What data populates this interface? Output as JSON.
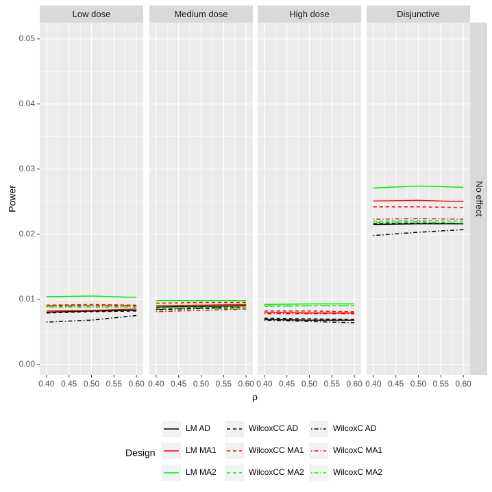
{
  "chart_data": {
    "type": "line",
    "ylabel": "Power",
    "xlabel": "ρ",
    "row_strip": "No effect",
    "xlim": [
      0.385,
      0.615
    ],
    "ylim": [
      -0.0016,
      0.0525
    ],
    "x_ticks": [
      0.4,
      0.45,
      0.5,
      0.55,
      0.6
    ],
    "x_tick_labels": [
      "0.40",
      "0.45",
      "0.50",
      "0.55",
      "0.60"
    ],
    "y_ticks": [
      0,
      0.01,
      0.02,
      0.03,
      0.04,
      0.05
    ],
    "y_tick_labels": [
      "0.00",
      "0.01",
      "0.02",
      "0.03",
      "0.04",
      "0.05"
    ],
    "x": [
      0.4,
      0.5,
      0.6
    ],
    "grid": true,
    "legend_title": "Design",
    "legend_position": "bottom",
    "styles": [
      {
        "key": "LM AD",
        "color": "#000000",
        "dash": "solid"
      },
      {
        "key": "LM MA1",
        "color": "#ff0000",
        "dash": "solid"
      },
      {
        "key": "LM MA2",
        "color": "#00ee00",
        "dash": "solid"
      },
      {
        "key": "WilcoxCC AD",
        "color": "#000000",
        "dash": "dashed"
      },
      {
        "key": "WilcoxCC MA1",
        "color": "#ff0000",
        "dash": "dashed"
      },
      {
        "key": "WilcoxCC MA2",
        "color": "#00ee00",
        "dash": "dashed"
      },
      {
        "key": "WilcoxC AD",
        "color": "#000000",
        "dash": "dotdash"
      },
      {
        "key": "WilcoxC MA1",
        "color": "#ff0000",
        "dash": "dotdash"
      },
      {
        "key": "WilcoxC MA2",
        "color": "#00ee00",
        "dash": "dotdash"
      }
    ],
    "legend_columns": [
      [
        "LM AD",
        "LM MA1",
        "LM MA2"
      ],
      [
        "WilcoxCC AD",
        "WilcoxCC MA1",
        "WilcoxCC MA2"
      ],
      [
        "WilcoxC AD",
        "WilcoxC MA1",
        "WilcoxC MA2"
      ]
    ],
    "panels": [
      {
        "title": "Low dose",
        "series": [
          {
            "name": "LM AD",
            "values": [
              0.008,
              0.0082,
              0.0083
            ]
          },
          {
            "name": "LM MA1",
            "values": [
              0.0082,
              0.0083,
              0.0085
            ]
          },
          {
            "name": "LM MA2",
            "values": [
              0.0104,
              0.0105,
              0.0103
            ]
          },
          {
            "name": "WilcoxCC AD",
            "values": [
              0.0079,
              0.0081,
              0.0082
            ]
          },
          {
            "name": "WilcoxCC MA1",
            "values": [
              0.0091,
              0.0092,
              0.0091
            ]
          },
          {
            "name": "WilcoxCC MA2",
            "values": [
              0.0089,
              0.009,
              0.0089
            ]
          },
          {
            "name": "WilcoxC AD",
            "values": [
              0.0065,
              0.0068,
              0.0075
            ]
          },
          {
            "name": "WilcoxC MA1",
            "values": [
              0.009,
              0.009,
              0.009
            ]
          },
          {
            "name": "WilcoxC MA2",
            "values": [
              0.0088,
              0.0088,
              0.0088
            ]
          }
        ]
      },
      {
        "title": "Medium dose",
        "series": [
          {
            "name": "LM AD",
            "values": [
              0.0088,
              0.0089,
              0.009
            ]
          },
          {
            "name": "LM MA1",
            "values": [
              0.009,
              0.0091,
              0.0092
            ]
          },
          {
            "name": "LM MA2",
            "values": [
              0.0098,
              0.0098,
              0.0098
            ]
          },
          {
            "name": "WilcoxCC AD",
            "values": [
              0.0085,
              0.0087,
              0.0088
            ]
          },
          {
            "name": "WilcoxCC MA1",
            "values": [
              0.0094,
              0.0095,
              0.0095
            ]
          },
          {
            "name": "WilcoxCC MA2",
            "values": [
              0.0086,
              0.0086,
              0.0085
            ]
          },
          {
            "name": "WilcoxC AD",
            "values": [
              0.0084,
              0.0086,
              0.0088
            ]
          },
          {
            "name": "WilcoxC MA1",
            "values": [
              0.0081,
              0.0083,
              0.0085
            ]
          },
          {
            "name": "WilcoxC MA2",
            "values": [
              0.0087,
              0.0088,
              0.0088
            ]
          }
        ]
      },
      {
        "title": "High dose",
        "series": [
          {
            "name": "LM AD",
            "values": [
              0.0069,
              0.0068,
              0.0068
            ]
          },
          {
            "name": "LM MA1",
            "values": [
              0.008,
              0.0079,
              0.0079
            ]
          },
          {
            "name": "LM MA2",
            "values": [
              0.0092,
              0.0093,
              0.0093
            ]
          },
          {
            "name": "WilcoxCC AD",
            "values": [
              0.0071,
              0.007,
              0.0069
            ]
          },
          {
            "name": "WilcoxCC MA1",
            "values": [
              0.0082,
              0.0082,
              0.0081
            ]
          },
          {
            "name": "WilcoxCC MA2",
            "values": [
              0.0089,
              0.009,
              0.009
            ]
          },
          {
            "name": "WilcoxC AD",
            "values": [
              0.0068,
              0.0066,
              0.0064
            ]
          },
          {
            "name": "WilcoxC MA1",
            "values": [
              0.0078,
              0.0078,
              0.0078
            ]
          },
          {
            "name": "WilcoxC MA2",
            "values": [
              0.009,
              0.009,
              0.009
            ]
          }
        ]
      },
      {
        "title": "Disjunctive",
        "series": [
          {
            "name": "LM AD",
            "values": [
              0.0215,
              0.0216,
              0.0216
            ]
          },
          {
            "name": "LM MA1",
            "values": [
              0.0251,
              0.0252,
              0.025
            ]
          },
          {
            "name": "LM MA2",
            "values": [
              0.0271,
              0.0274,
              0.0272
            ]
          },
          {
            "name": "WilcoxCC AD",
            "values": [
              0.0216,
              0.0217,
              0.0216
            ]
          },
          {
            "name": "WilcoxCC MA1",
            "values": [
              0.0242,
              0.0242,
              0.0241
            ]
          },
          {
            "name": "WilcoxCC MA2",
            "values": [
              0.022,
              0.0221,
              0.022
            ]
          },
          {
            "name": "WilcoxC AD",
            "values": [
              0.0198,
              0.0203,
              0.0207
            ]
          },
          {
            "name": "WilcoxC MA1",
            "values": [
              0.0223,
              0.0224,
              0.0223
            ]
          },
          {
            "name": "WilcoxC MA2",
            "values": [
              0.0218,
              0.0219,
              0.0217
            ]
          }
        ]
      }
    ]
  }
}
